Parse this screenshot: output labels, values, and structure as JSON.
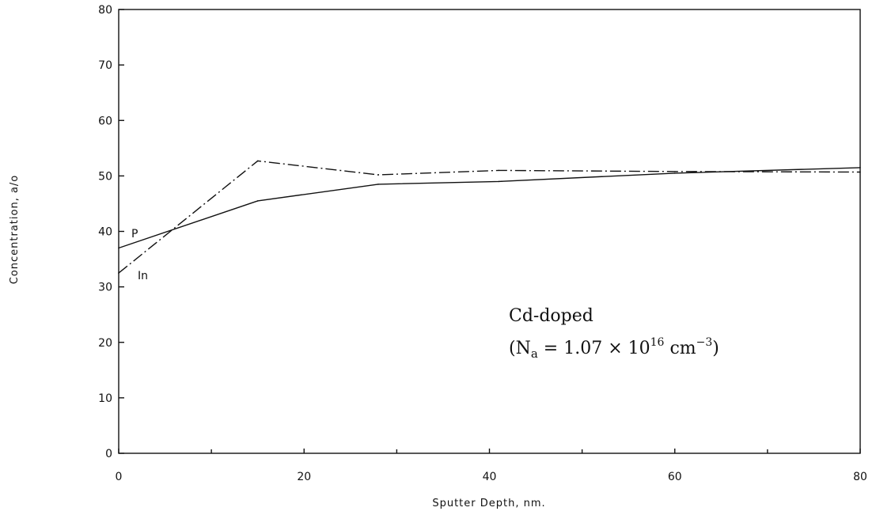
{
  "chart_data": {
    "type": "line",
    "title": "",
    "xlabel": "Sputter Depth, nm.",
    "ylabel": "Concentration, a/o",
    "xlim": [
      0,
      80
    ],
    "ylim": [
      0,
      80
    ],
    "x_ticks": [
      "0",
      "20",
      "40",
      "60",
      "80"
    ],
    "x_minor_ticks": [
      10,
      30,
      50,
      70
    ],
    "y_ticks": [
      "0",
      "10",
      "20",
      "30",
      "40",
      "50",
      "60",
      "70",
      "80"
    ],
    "grid": false,
    "series": [
      {
        "name": "P",
        "style": "solid",
        "x": [
          0,
          15,
          28,
          41,
          60,
          80
        ],
        "y": [
          37,
          45.5,
          48.5,
          49,
          50.5,
          51.5
        ]
      },
      {
        "name": "In",
        "style": "dashdot",
        "x": [
          0,
          15,
          28,
          41,
          60,
          80
        ],
        "y": [
          32.5,
          52.7,
          50.2,
          51,
          50.8,
          50.7
        ]
      }
    ],
    "annotations": {
      "line1": "Cd-doped",
      "line2_prefix": "(N",
      "line2_sub": "a",
      "line2_mid": " = 1.07 × 10",
      "line2_sup1": "16",
      "line2_unit": " cm",
      "line2_sup2": "−3",
      "line2_suffix": ")"
    }
  }
}
